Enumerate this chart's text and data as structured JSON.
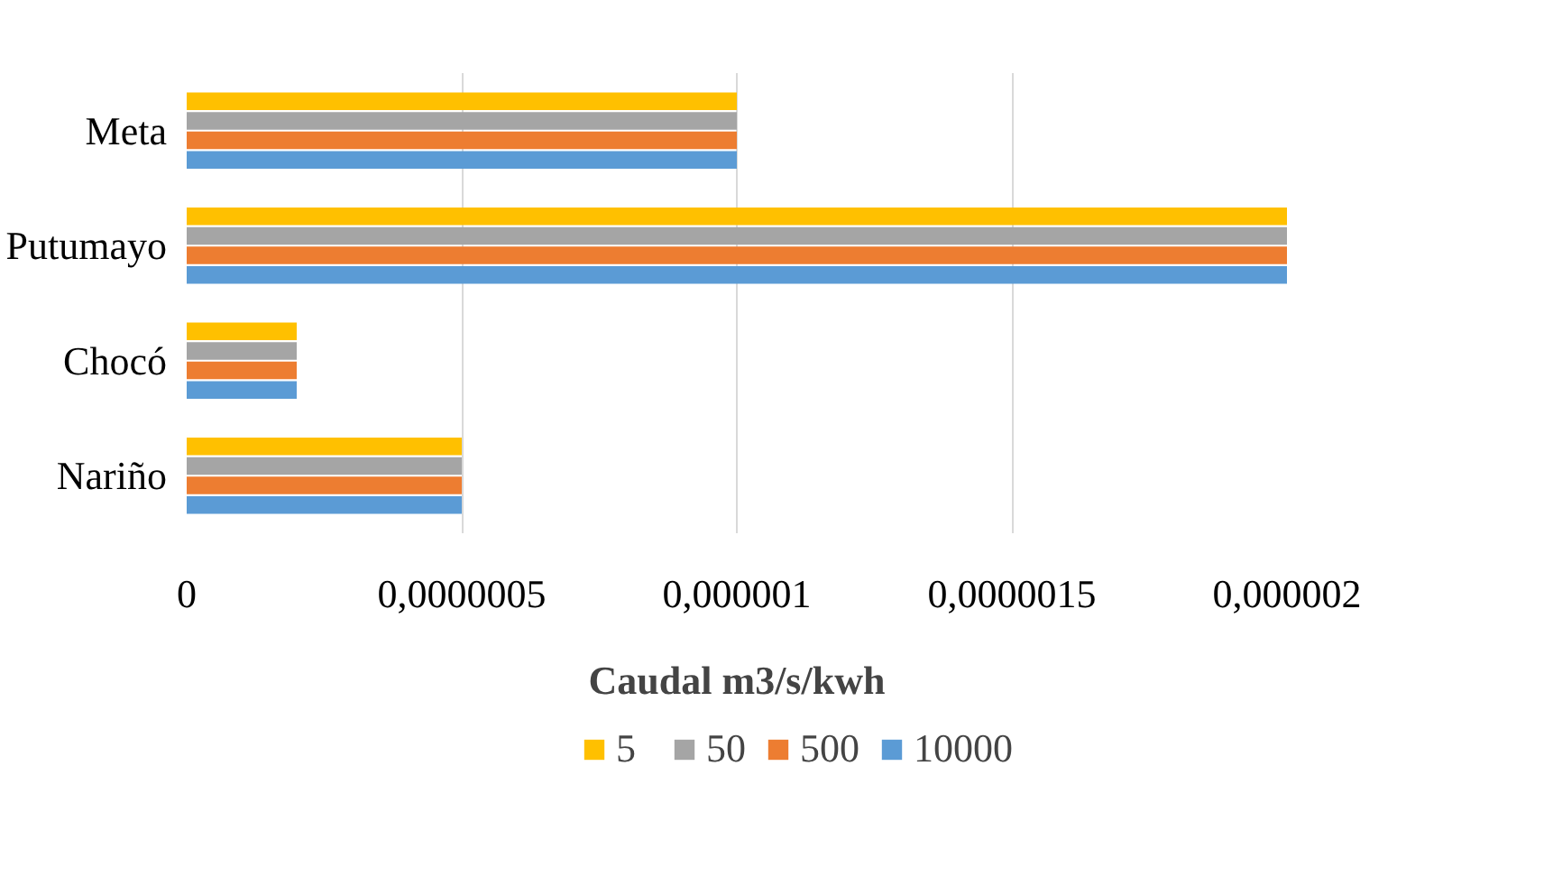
{
  "chart_data": {
    "type": "bar",
    "orientation": "horizontal",
    "xlabel": "Caudal m3/s/kwh",
    "categories": [
      "Meta",
      "Putumayo",
      "Chocó",
      "Nariño"
    ],
    "series": [
      {
        "name": "5",
        "color": "#ffc000",
        "values": [
          1e-06,
          2e-06,
          2e-07,
          5e-07
        ]
      },
      {
        "name": "50",
        "color": "#a5a5a5",
        "values": [
          1e-06,
          2e-06,
          2e-07,
          5e-07
        ]
      },
      {
        "name": "500",
        "color": "#ed7d31",
        "values": [
          1e-06,
          2e-06,
          2e-07,
          5e-07
        ]
      },
      {
        "name": "10000",
        "color": "#5b9bd5",
        "values": [
          1e-06,
          2e-06,
          2e-07,
          5e-07
        ]
      }
    ],
    "xlim": [
      0,
      2e-06
    ],
    "xticks": [
      0,
      {
        "value": 5e-07,
        "label": "0,0000005"
      },
      {
        "value": 1e-06,
        "label": "0,000001"
      },
      {
        "value": 1.5e-06,
        "label": "0,0000015"
      },
      {
        "value": 2e-06,
        "label": "0,000002"
      }
    ],
    "grid": "x",
    "legend": "bottom"
  }
}
